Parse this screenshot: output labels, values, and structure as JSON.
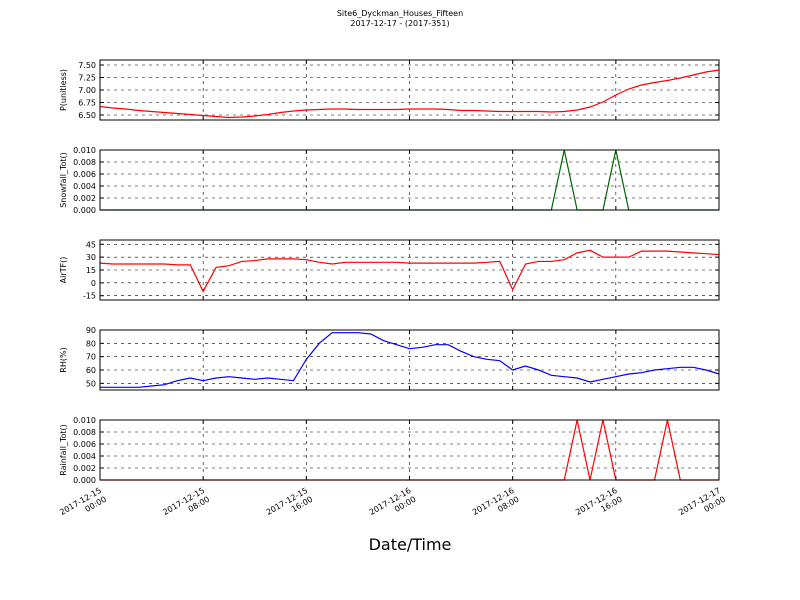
{
  "chart_data": [
    {
      "type": "line",
      "title": "Site6_Dyckman_Houses_Fifteen",
      "subtitle": "2017-12-17 - (2017-351)",
      "ylabel": "P(unitless)",
      "color": "#ff0000",
      "x": [
        "2017-12-15 00:00",
        "2017-12-15 01:00",
        "2017-12-15 02:00",
        "2017-12-15 03:00",
        "2017-12-15 04:00",
        "2017-12-15 05:00",
        "2017-12-15 06:00",
        "2017-12-15 07:00",
        "2017-12-15 08:00",
        "2017-12-15 09:00",
        "2017-12-15 10:00",
        "2017-12-15 11:00",
        "2017-12-15 12:00",
        "2017-12-15 13:00",
        "2017-12-15 14:00",
        "2017-12-15 15:00",
        "2017-12-15 16:00",
        "2017-12-15 17:00",
        "2017-12-15 18:00",
        "2017-12-15 19:00",
        "2017-12-15 20:00",
        "2017-12-15 21:00",
        "2017-12-15 22:00",
        "2017-12-15 23:00",
        "2017-12-16 00:00",
        "2017-12-16 01:00",
        "2017-12-16 02:00",
        "2017-12-16 03:00",
        "2017-12-16 04:00",
        "2017-12-16 05:00",
        "2017-12-16 06:00",
        "2017-12-16 07:00",
        "2017-12-16 08:00",
        "2017-12-16 09:00",
        "2017-12-16 10:00",
        "2017-12-16 11:00",
        "2017-12-16 12:00",
        "2017-12-16 13:00",
        "2017-12-16 14:00",
        "2017-12-16 15:00",
        "2017-12-16 16:00",
        "2017-12-16 17:00",
        "2017-12-16 18:00",
        "2017-12-16 19:00",
        "2017-12-16 20:00",
        "2017-12-16 21:00",
        "2017-12-16 22:00",
        "2017-12-16 23:00",
        "2017-12-17 00:00"
      ],
      "values": [
        6.67,
        6.64,
        6.62,
        6.59,
        6.57,
        6.55,
        6.53,
        6.51,
        6.49,
        6.47,
        6.45,
        6.46,
        6.48,
        6.51,
        6.55,
        6.58,
        6.6,
        6.61,
        6.62,
        6.62,
        6.61,
        6.61,
        6.61,
        6.61,
        6.62,
        6.62,
        6.62,
        6.61,
        6.59,
        6.59,
        6.58,
        6.57,
        6.57,
        6.57,
        6.57,
        6.56,
        6.57,
        6.6,
        6.66,
        6.76,
        6.9,
        7.02,
        7.1,
        7.15,
        7.19,
        7.24,
        7.3,
        7.36,
        7.4
      ],
      "ylim": [
        6.4,
        7.6
      ],
      "yticks": [
        {
          "value": 6.5,
          "label": "6.50"
        },
        {
          "value": 6.75,
          "label": "6.75"
        },
        {
          "value": 7,
          "label": "7.00"
        },
        {
          "value": 7.25,
          "label": "7.25"
        },
        {
          "value": 7.5,
          "label": "7.50"
        }
      ],
      "grid": true
    },
    {
      "type": "line",
      "ylabel": "Snowfall_Tot()",
      "color": "#006400",
      "x": [
        "2017-12-15 00:00",
        "2017-12-15 01:00",
        "2017-12-15 02:00",
        "2017-12-15 03:00",
        "2017-12-15 04:00",
        "2017-12-15 05:00",
        "2017-12-15 06:00",
        "2017-12-15 07:00",
        "2017-12-15 08:00",
        "2017-12-15 09:00",
        "2017-12-15 10:00",
        "2017-12-15 11:00",
        "2017-12-15 12:00",
        "2017-12-15 13:00",
        "2017-12-15 14:00",
        "2017-12-15 15:00",
        "2017-12-15 16:00",
        "2017-12-15 17:00",
        "2017-12-15 18:00",
        "2017-12-15 19:00",
        "2017-12-15 20:00",
        "2017-12-15 21:00",
        "2017-12-15 22:00",
        "2017-12-15 23:00",
        "2017-12-16 00:00",
        "2017-12-16 01:00",
        "2017-12-16 02:00",
        "2017-12-16 03:00",
        "2017-12-16 04:00",
        "2017-12-16 05:00",
        "2017-12-16 06:00",
        "2017-12-16 07:00",
        "2017-12-16 08:00",
        "2017-12-16 09:00",
        "2017-12-16 10:00",
        "2017-12-16 11:00",
        "2017-12-16 12:00",
        "2017-12-16 13:00",
        "2017-12-16 14:00",
        "2017-12-16 15:00",
        "2017-12-16 16:00",
        "2017-12-16 17:00",
        "2017-12-16 18:00",
        "2017-12-16 19:00",
        "2017-12-16 20:00",
        "2017-12-16 21:00",
        "2017-12-16 22:00",
        "2017-12-16 23:00",
        "2017-12-17 00:00"
      ],
      "values": [
        0,
        0,
        0,
        0,
        0,
        0,
        0,
        0,
        0,
        0,
        0,
        0,
        0,
        0,
        0,
        0,
        0,
        0,
        0,
        0,
        0,
        0,
        0,
        0,
        0,
        0,
        0,
        0,
        0,
        0,
        0,
        0,
        0,
        0,
        0,
        0,
        0.01,
        0,
        0,
        0,
        0.01,
        0,
        0,
        0,
        0,
        0,
        0,
        0,
        0
      ],
      "ylim": [
        0,
        0.01
      ],
      "yticks": [
        {
          "value": 0,
          "label": "0.000"
        },
        {
          "value": 0.002,
          "label": "0.002"
        },
        {
          "value": 0.004,
          "label": "0.004"
        },
        {
          "value": 0.006,
          "label": "0.006"
        },
        {
          "value": 0.008,
          "label": "0.008"
        },
        {
          "value": 0.01,
          "label": "0.010"
        }
      ],
      "grid": true
    },
    {
      "type": "line",
      "ylabel": "AirTF()",
      "color": "#ff0000",
      "x": [
        "2017-12-15 00:00",
        "2017-12-15 01:00",
        "2017-12-15 02:00",
        "2017-12-15 03:00",
        "2017-12-15 04:00",
        "2017-12-15 05:00",
        "2017-12-15 06:00",
        "2017-12-15 07:00",
        "2017-12-15 08:00",
        "2017-12-15 09:00",
        "2017-12-15 10:00",
        "2017-12-15 11:00",
        "2017-12-15 12:00",
        "2017-12-15 13:00",
        "2017-12-15 14:00",
        "2017-12-15 15:00",
        "2017-12-15 16:00",
        "2017-12-15 17:00",
        "2017-12-15 18:00",
        "2017-12-15 19:00",
        "2017-12-15 20:00",
        "2017-12-15 21:00",
        "2017-12-15 22:00",
        "2017-12-15 23:00",
        "2017-12-16 00:00",
        "2017-12-16 01:00",
        "2017-12-16 02:00",
        "2017-12-16 03:00",
        "2017-12-16 04:00",
        "2017-12-16 05:00",
        "2017-12-16 06:00",
        "2017-12-16 07:00",
        "2017-12-16 08:00",
        "2017-12-16 09:00",
        "2017-12-16 10:00",
        "2017-12-16 11:00",
        "2017-12-16 12:00",
        "2017-12-16 13:00",
        "2017-12-16 14:00",
        "2017-12-16 15:00",
        "2017-12-16 16:00",
        "2017-12-16 17:00",
        "2017-12-16 18:00",
        "2017-12-16 19:00",
        "2017-12-16 20:00",
        "2017-12-16 21:00",
        "2017-12-16 22:00",
        "2017-12-16 23:00",
        "2017-12-17 00:00"
      ],
      "values": [
        23,
        22,
        22,
        22,
        22,
        22,
        21,
        21,
        -10,
        18,
        20,
        25,
        26,
        28,
        28,
        28,
        27,
        24,
        22,
        24,
        24,
        24,
        24,
        24,
        23,
        23,
        23,
        23,
        23,
        23,
        24,
        25,
        -8,
        22,
        25,
        25,
        27,
        35,
        38,
        30,
        30,
        30,
        37,
        37,
        37,
        36,
        35,
        34,
        33
      ],
      "ylim": [
        -20,
        50
      ],
      "yticks": [
        -15,
        0,
        15,
        30,
        45
      ],
      "grid": true
    },
    {
      "type": "line",
      "ylabel": "RH(%)",
      "color": "#0000ff",
      "x": [
        "2017-12-15 00:00",
        "2017-12-15 01:00",
        "2017-12-15 02:00",
        "2017-12-15 03:00",
        "2017-12-15 04:00",
        "2017-12-15 05:00",
        "2017-12-15 06:00",
        "2017-12-15 07:00",
        "2017-12-15 08:00",
        "2017-12-15 09:00",
        "2017-12-15 10:00",
        "2017-12-15 11:00",
        "2017-12-15 12:00",
        "2017-12-15 13:00",
        "2017-12-15 14:00",
        "2017-12-15 15:00",
        "2017-12-15 16:00",
        "2017-12-15 17:00",
        "2017-12-15 18:00",
        "2017-12-15 19:00",
        "2017-12-15 20:00",
        "2017-12-15 21:00",
        "2017-12-15 22:00",
        "2017-12-15 23:00",
        "2017-12-16 00:00",
        "2017-12-16 01:00",
        "2017-12-16 02:00",
        "2017-12-16 03:00",
        "2017-12-16 04:00",
        "2017-12-16 05:00",
        "2017-12-16 06:00",
        "2017-12-16 07:00",
        "2017-12-16 08:00",
        "2017-12-16 09:00",
        "2017-12-16 10:00",
        "2017-12-16 11:00",
        "2017-12-16 12:00",
        "2017-12-16 13:00",
        "2017-12-16 14:00",
        "2017-12-16 15:00",
        "2017-12-16 16:00",
        "2017-12-16 17:00",
        "2017-12-16 18:00",
        "2017-12-16 19:00",
        "2017-12-16 20:00",
        "2017-12-16 21:00",
        "2017-12-16 22:00",
        "2017-12-16 23:00",
        "2017-12-17 00:00"
      ],
      "values": [
        47,
        47,
        47,
        47,
        48,
        49,
        52,
        54,
        52,
        54,
        55,
        54,
        53,
        54,
        53,
        52,
        68,
        80,
        88,
        88,
        88,
        87,
        82,
        79,
        76,
        77,
        79,
        79,
        74,
        70,
        68,
        67,
        60,
        63,
        60,
        56,
        55,
        54,
        51,
        53,
        55,
        57,
        58,
        60,
        61,
        62,
        62,
        60,
        57
      ],
      "ylim": [
        45,
        90
      ],
      "yticks": [
        50,
        60,
        70,
        80,
        90
      ],
      "grid": true
    },
    {
      "type": "line",
      "ylabel": "Rainfall_Tot()",
      "xlabel": "Date/Time",
      "color": "#ff0000",
      "x": [
        "2017-12-15 00:00",
        "2017-12-15 01:00",
        "2017-12-15 02:00",
        "2017-12-15 03:00",
        "2017-12-15 04:00",
        "2017-12-15 05:00",
        "2017-12-15 06:00",
        "2017-12-15 07:00",
        "2017-12-15 08:00",
        "2017-12-15 09:00",
        "2017-12-15 10:00",
        "2017-12-15 11:00",
        "2017-12-15 12:00",
        "2017-12-15 13:00",
        "2017-12-15 14:00",
        "2017-12-15 15:00",
        "2017-12-15 16:00",
        "2017-12-15 17:00",
        "2017-12-15 18:00",
        "2017-12-15 19:00",
        "2017-12-15 20:00",
        "2017-12-15 21:00",
        "2017-12-15 22:00",
        "2017-12-15 23:00",
        "2017-12-16 00:00",
        "2017-12-16 01:00",
        "2017-12-16 02:00",
        "2017-12-16 03:00",
        "2017-12-16 04:00",
        "2017-12-16 05:00",
        "2017-12-16 06:00",
        "2017-12-16 07:00",
        "2017-12-16 08:00",
        "2017-12-16 09:00",
        "2017-12-16 10:00",
        "2017-12-16 11:00",
        "2017-12-16 12:00",
        "2017-12-16 13:00",
        "2017-12-16 14:00",
        "2017-12-16 15:00",
        "2017-12-16 16:00",
        "2017-12-16 17:00",
        "2017-12-16 18:00",
        "2017-12-16 19:00",
        "2017-12-16 20:00",
        "2017-12-16 21:00",
        "2017-12-16 22:00",
        "2017-12-16 23:00",
        "2017-12-17 00:00"
      ],
      "values": [
        0,
        0,
        0,
        0,
        0,
        0,
        0,
        0,
        0,
        0,
        0,
        0,
        0,
        0,
        0,
        0,
        0,
        0,
        0,
        0,
        0,
        0,
        0,
        0,
        0,
        0,
        0,
        0,
        0,
        0,
        0,
        0,
        0,
        0,
        0,
        0,
        0,
        0.01,
        0,
        0.01,
        0,
        0,
        0,
        0,
        0.01,
        0,
        0,
        0,
        0
      ],
      "ylim": [
        0,
        0.01
      ],
      "yticks": [
        {
          "value": 0,
          "label": "0.000"
        },
        {
          "value": 0.002,
          "label": "0.002"
        },
        {
          "value": 0.004,
          "label": "0.004"
        },
        {
          "value": 0.006,
          "label": "0.006"
        },
        {
          "value": 0.008,
          "label": "0.008"
        },
        {
          "value": 0.01,
          "label": "0.010"
        }
      ],
      "grid": true,
      "xlim": [
        "2017-12-15 00:00",
        "2017-12-17 00:00"
      ],
      "xticks": [
        "2017-12-15 00:00",
        "2017-12-15 08:00",
        "2017-12-15 16:00",
        "2017-12-16 00:00",
        "2017-12-16 08:00",
        "2017-12-16 16:00",
        "2017-12-17 00:00"
      ]
    }
  ]
}
